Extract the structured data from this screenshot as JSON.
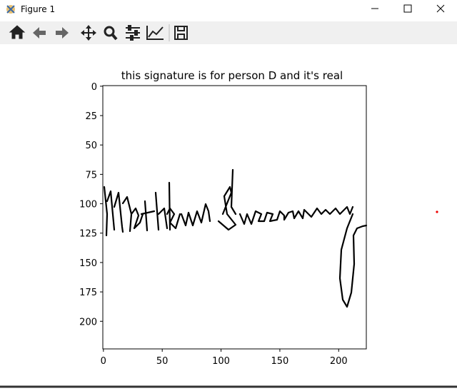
{
  "window": {
    "title": "Figure 1"
  },
  "chart_data": {
    "type": "image",
    "title": "this signature is for person D and it's  real",
    "xlim": [
      -0.5,
      223.5
    ],
    "ylim": [
      223.5,
      -0.5
    ],
    "xticks": [
      0,
      50,
      100,
      150,
      200
    ],
    "yticks": [
      0,
      25,
      50,
      75,
      100,
      125,
      150,
      175,
      200
    ]
  }
}
